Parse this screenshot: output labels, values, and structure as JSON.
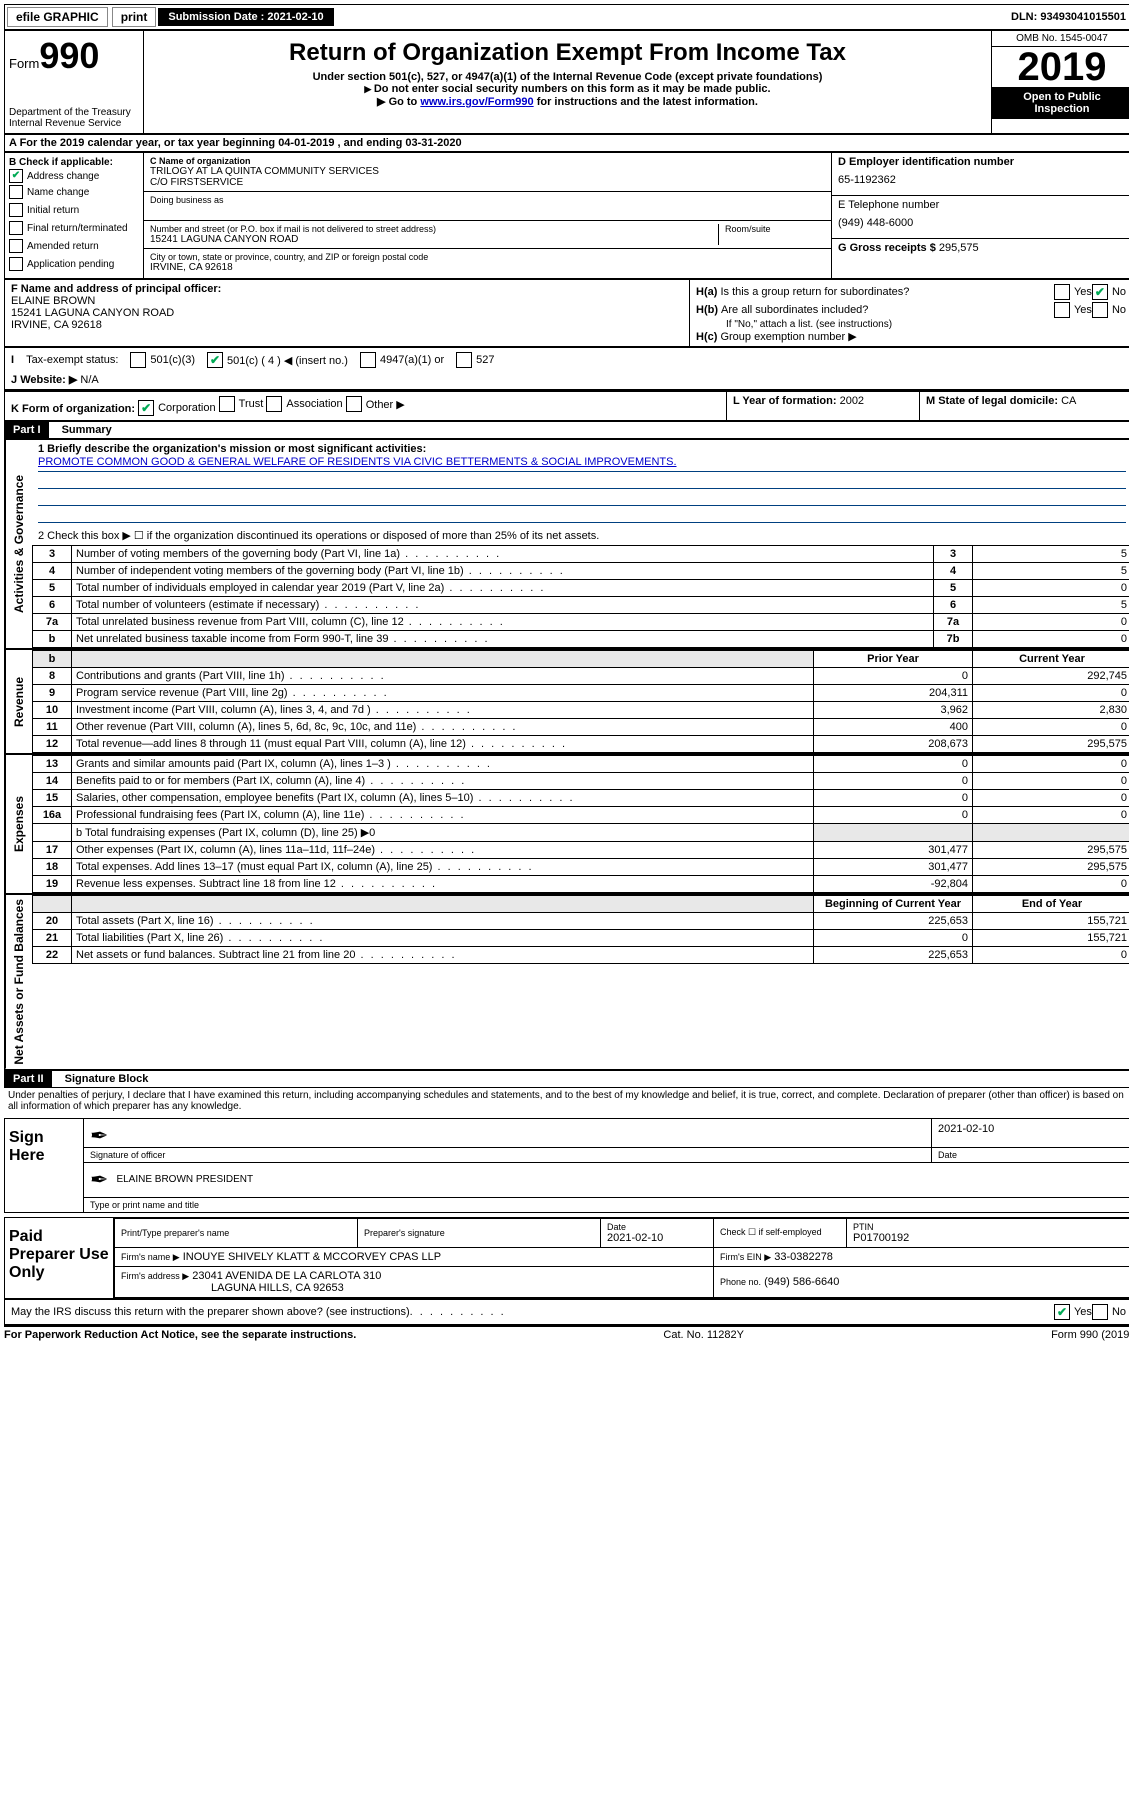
{
  "topbar": {
    "efile": "efile GRAPHIC",
    "print": "print",
    "submission_label": "Submission Date : 2021-02-10",
    "dln": "DLN: 93493041015501"
  },
  "header": {
    "form_word": "Form",
    "form_number": "990",
    "dept": "Department of the Treasury",
    "irs": "Internal Revenue Service",
    "title": "Return of Organization Exempt From Income Tax",
    "subtitle": "Under section 501(c), 527, or 4947(a)(1) of the Internal Revenue Code (except private foundations)",
    "note1": "Do not enter social security numbers on this form as it may be made public.",
    "note2_pre": "Go to ",
    "note2_link": "www.irs.gov/Form990",
    "note2_post": " for instructions and the latest information.",
    "omb": "OMB No. 1545-0047",
    "year": "2019",
    "open_public": "Open to Public Inspection"
  },
  "row_a": "A For the 2019 calendar year, or tax year beginning 04-01-2019   , and ending 03-31-2020",
  "section_b": {
    "label": "B Check if applicable:",
    "items": [
      {
        "label": "Address change",
        "checked": true
      },
      {
        "label": "Name change",
        "checked": false
      },
      {
        "label": "Initial return",
        "checked": false
      },
      {
        "label": "Final return/terminated",
        "checked": false
      },
      {
        "label": "Amended return",
        "checked": false
      },
      {
        "label": "Application pending",
        "checked": false
      }
    ]
  },
  "section_c": {
    "name_label": "C Name of organization",
    "name": "TRILOGY AT LA QUINTA COMMUNITY SERVICES",
    "care_of": "C/O FIRSTSERVICE",
    "dba_label": "Doing business as",
    "street_label": "Number and street (or P.O. box if mail is not delivered to street address)",
    "room_label": "Room/suite",
    "street": "15241 LAGUNA CANYON ROAD",
    "city_label": "City or town, state or province, country, and ZIP or foreign postal code",
    "city": "IRVINE, CA  92618"
  },
  "section_d": {
    "label": "D Employer identification number",
    "value": "65-1192362",
    "phone_label": "E Telephone number",
    "phone": "(949) 448-6000",
    "gross_label": "G Gross receipts $",
    "gross": "295,575"
  },
  "section_f": {
    "label": "F  Name and address of principal officer:",
    "name": "ELAINE BROWN",
    "addr1": "15241 LAGUNA CANYON ROAD",
    "addr2": "IRVINE, CA  92618"
  },
  "section_h": {
    "ha": "Is this a group return for subordinates?",
    "hb": "Are all subordinates included?",
    "hb_note": "If \"No,\" attach a list. (see instructions)",
    "hc": "Group exemption number ▶"
  },
  "tax_status": {
    "label": "Tax-exempt status:",
    "c3": "501(c)(3)",
    "c_main": "501(c) ( 4 ) ◀ (insert no.)",
    "c4947": "4947(a)(1) or",
    "c527": "527"
  },
  "website": {
    "label": "Website: ▶",
    "value": "N/A"
  },
  "row_k": {
    "label": "K Form of organization:",
    "corp": "Corporation",
    "trust": "Trust",
    "assoc": "Association",
    "other": "Other ▶"
  },
  "row_l": {
    "label": "L Year of formation:",
    "value": "2002"
  },
  "row_m": {
    "label": "M State of legal domicile:",
    "value": "CA"
  },
  "part1": {
    "header": "Part I",
    "title": "Summary",
    "line1_label": "1  Briefly describe the organization's mission or most significant activities:",
    "mission": "PROMOTE COMMON GOOD & GENERAL WELFARE OF RESIDENTS VIA CIVIC BETTERMENTS & SOCIAL IMPROVEMENTS.",
    "line2": "2   Check this box ▶ ☐  if the organization discontinued its operations or disposed of more than 25% of its net assets.",
    "rows_ag": [
      {
        "n": "3",
        "label": "Number of voting members of the governing body (Part VI, line 1a)",
        "box": "3",
        "val": "5"
      },
      {
        "n": "4",
        "label": "Number of independent voting members of the governing body (Part VI, line 1b)",
        "box": "4",
        "val": "5"
      },
      {
        "n": "5",
        "label": "Total number of individuals employed in calendar year 2019 (Part V, line 2a)",
        "box": "5",
        "val": "0"
      },
      {
        "n": "6",
        "label": "Total number of volunteers (estimate if necessary)",
        "box": "6",
        "val": "5"
      },
      {
        "n": "7a",
        "label": "Total unrelated business revenue from Part VIII, column (C), line 12",
        "box": "7a",
        "val": "0"
      },
      {
        "n": "b",
        "label": "Net unrelated business taxable income from Form 990-T, line 39",
        "box": "7b",
        "val": "0"
      }
    ],
    "money_headers": {
      "prior": "Prior Year",
      "current": "Current Year",
      "begin": "Beginning of Current Year",
      "end": "End of Year"
    },
    "revenue": [
      {
        "n": "8",
        "label": "Contributions and grants (Part VIII, line 1h)",
        "prior": "0",
        "current": "292,745"
      },
      {
        "n": "9",
        "label": "Program service revenue (Part VIII, line 2g)",
        "prior": "204,311",
        "current": "0"
      },
      {
        "n": "10",
        "label": "Investment income (Part VIII, column (A), lines 3, 4, and 7d )",
        "prior": "3,962",
        "current": "2,830"
      },
      {
        "n": "11",
        "label": "Other revenue (Part VIII, column (A), lines 5, 6d, 8c, 9c, 10c, and 11e)",
        "prior": "400",
        "current": "0"
      },
      {
        "n": "12",
        "label": "Total revenue—add lines 8 through 11 (must equal Part VIII, column (A), line 12)",
        "prior": "208,673",
        "current": "295,575"
      }
    ],
    "expenses": [
      {
        "n": "13",
        "label": "Grants and similar amounts paid (Part IX, column (A), lines 1–3 )",
        "prior": "0",
        "current": "0"
      },
      {
        "n": "14",
        "label": "Benefits paid to or for members (Part IX, column (A), line 4)",
        "prior": "0",
        "current": "0"
      },
      {
        "n": "15",
        "label": "Salaries, other compensation, employee benefits (Part IX, column (A), lines 5–10)",
        "prior": "0",
        "current": "0"
      },
      {
        "n": "16a",
        "label": "Professional fundraising fees (Part IX, column (A), line 11e)",
        "prior": "0",
        "current": "0"
      }
    ],
    "line16b": "b  Total fundraising expenses (Part IX, column (D), line 25) ▶0",
    "expenses2": [
      {
        "n": "17",
        "label": "Other expenses (Part IX, column (A), lines 11a–11d, 11f–24e)",
        "prior": "301,477",
        "current": "295,575"
      },
      {
        "n": "18",
        "label": "Total expenses. Add lines 13–17 (must equal Part IX, column (A), line 25)",
        "prior": "301,477",
        "current": "295,575"
      },
      {
        "n": "19",
        "label": "Revenue less expenses. Subtract line 18 from line 12",
        "prior": "-92,804",
        "current": "0"
      }
    ],
    "netassets": [
      {
        "n": "20",
        "label": "Total assets (Part X, line 16)",
        "prior": "225,653",
        "current": "155,721"
      },
      {
        "n": "21",
        "label": "Total liabilities (Part X, line 26)",
        "prior": "0",
        "current": "155,721"
      },
      {
        "n": "22",
        "label": "Net assets or fund balances. Subtract line 21 from line 20",
        "prior": "225,653",
        "current": "0"
      }
    ]
  },
  "side_labels": {
    "ag": "Activities & Governance",
    "rev": "Revenue",
    "exp": "Expenses",
    "net": "Net Assets or Fund Balances"
  },
  "part2": {
    "header": "Part II",
    "title": "Signature Block",
    "declaration": "Under penalties of perjury, I declare that I have examined this return, including accompanying schedules and statements, and to the best of my knowledge and belief, it is true, correct, and complete. Declaration of preparer (other than officer) is based on all information of which preparer has any knowledge."
  },
  "sign_here": {
    "label": "Sign Here",
    "sig_officer": "Signature of officer",
    "date": "2021-02-10",
    "date_label": "Date",
    "name": "ELAINE BROWN  PRESIDENT",
    "name_label": "Type or print name and title"
  },
  "paid": {
    "label": "Paid Preparer Use Only",
    "h_prep": "Print/Type preparer's name",
    "h_sig": "Preparer's signature",
    "h_date": "Date",
    "date": "2021-02-10",
    "h_check": "Check ☐ if self-employed",
    "h_ptin": "PTIN",
    "ptin": "P01700192",
    "firm_name_label": "Firm's name    ▶",
    "firm_name": "INOUYE SHIVELY KLATT & MCCORVEY CPAS LLP",
    "firm_ein_label": "Firm's EIN ▶",
    "firm_ein": "33-0382278",
    "firm_addr_label": "Firm's address ▶",
    "firm_addr1": "23041 AVENIDA DE LA CARLOTA 310",
    "firm_addr2": "LAGUNA HILLS, CA  92653",
    "phone_label": "Phone no.",
    "phone": "(949) 586-6640"
  },
  "discuss": {
    "q": "May the IRS discuss this return with the preparer shown above? (see instructions)",
    "yes": "Yes",
    "no": "No"
  },
  "footer": {
    "left": "For Paperwork Reduction Act Notice, see the separate instructions.",
    "mid": "Cat. No. 11282Y",
    "right": "Form 990 (2019)"
  }
}
